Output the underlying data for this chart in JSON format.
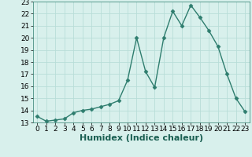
{
  "x": [
    0,
    1,
    2,
    3,
    4,
    5,
    6,
    7,
    8,
    9,
    10,
    11,
    12,
    13,
    14,
    15,
    16,
    17,
    18,
    19,
    20,
    21,
    22,
    23
  ],
  "y": [
    13.5,
    13.1,
    13.2,
    13.3,
    13.8,
    14.0,
    14.1,
    14.3,
    14.5,
    14.8,
    16.5,
    20.0,
    17.2,
    15.9,
    20.0,
    22.2,
    21.0,
    22.7,
    21.7,
    20.6,
    19.3,
    17.0,
    15.0,
    13.9
  ],
  "line_color": "#2e7d6e",
  "marker": "D",
  "markersize": 2.5,
  "linewidth": 1.0,
  "xlabel": "Humidex (Indice chaleur)",
  "xlabel_fontsize": 8,
  "xlabel_fontweight": "bold",
  "ylim": [
    13,
    23
  ],
  "xlim": [
    -0.5,
    23.5
  ],
  "yticks": [
    13,
    14,
    15,
    16,
    17,
    18,
    19,
    20,
    21,
    22,
    23
  ],
  "xticks": [
    0,
    1,
    2,
    3,
    4,
    5,
    6,
    7,
    8,
    9,
    10,
    11,
    12,
    13,
    14,
    15,
    16,
    17,
    18,
    19,
    20,
    21,
    22,
    23
  ],
  "background_color": "#d8f0ec",
  "grid_color": "#b8ddd8",
  "tick_fontsize": 6.5
}
